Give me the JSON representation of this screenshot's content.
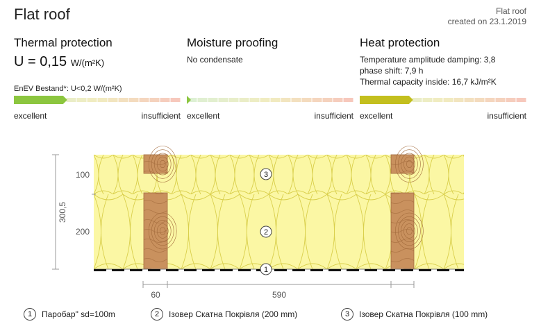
{
  "header": {
    "title": "Flat roof",
    "meta_type": "Flat roof",
    "meta_created": "created on 23.1.2019"
  },
  "thermal": {
    "heading": "Thermal protection",
    "u_value": "U = 0,15",
    "u_unit": "W/(m²K)",
    "requirement": "EnEV Bestand*: U<0,2 W/(m²K)",
    "scale_left": "excellent",
    "scale_right": "insufficient",
    "rating": 0.32
  },
  "moisture": {
    "heading": "Moisture proofing",
    "status": "No condensate",
    "scale_left": "excellent",
    "scale_right": "insufficient",
    "rating": 0.02
  },
  "heat": {
    "heading": "Heat protection",
    "line1": "Temperature amplitude damping: 3,8",
    "line2": "phase shift: 7,9 h",
    "line3": "Thermal capacity inside: 16,7 kJ/m²K",
    "scale_left": "excellent",
    "scale_right": "insufficient",
    "rating": 0.32
  },
  "drawing": {
    "total_thickness": "300,5",
    "layer_top_thickness": "100",
    "layer_bottom_thickness": "200",
    "dim_left": "60",
    "dim_right": "590",
    "markers": [
      "1",
      "2",
      "3"
    ],
    "colors": {
      "insulation": "#fbf7a4",
      "insulation_line": "#d9cf4c",
      "wood": "#c9915e",
      "wood_line": "#a26a3b",
      "membrane": "#111111"
    }
  },
  "legend": [
    {
      "num": "1",
      "label": "Паробар\" sd=100m"
    },
    {
      "num": "2",
      "label": "Ізовер Скатна Покрівля (200 mm)"
    },
    {
      "num": "3",
      "label": "Ізовер Скатна Покрівля (100 mm)"
    }
  ]
}
